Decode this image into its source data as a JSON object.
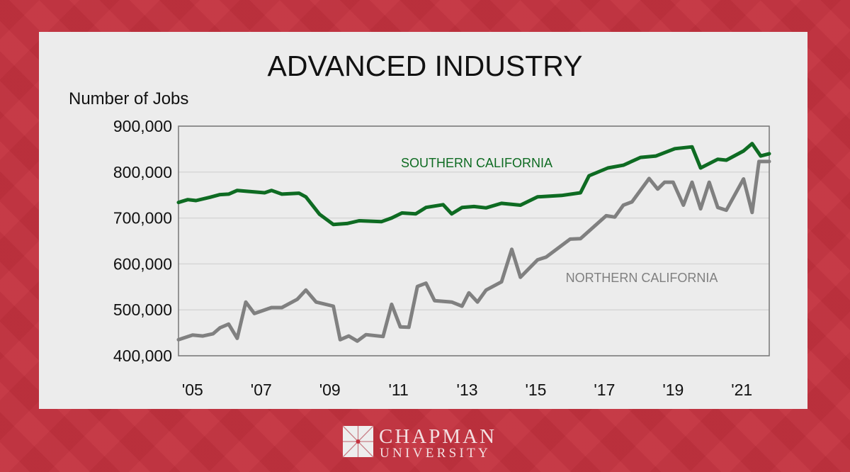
{
  "chart_data": {
    "type": "line",
    "title": "ADVANCED INDUSTRY",
    "ylabel": "Number of Jobs",
    "xlabel": "",
    "ylim": [
      400000,
      900000
    ],
    "xlim": [
      2004.59,
      2021.8
    ],
    "y_ticks": [
      "900,000",
      "800,000",
      "700,000",
      "600,000",
      "500,000",
      "400,000"
    ],
    "y_tick_values": [
      900000,
      800000,
      700000,
      600000,
      500000,
      400000
    ],
    "x_ticks": [
      "'05",
      "'07",
      "'09",
      "'11",
      "'13",
      "'15",
      "'17",
      "'19",
      "'21"
    ],
    "x_tick_values": [
      2005,
      2007,
      2009,
      2011,
      2013,
      2015,
      2017,
      2019,
      2021
    ],
    "grid": "horizontal",
    "series": [
      {
        "name": "SOUTHERN CALIFORNIA",
        "color": "#0e6b22",
        "points": [
          [
            2004.59,
            734000
          ],
          [
            2004.86,
            740000
          ],
          [
            2005.1,
            738000
          ],
          [
            2005.5,
            745000
          ],
          [
            2005.8,
            751000
          ],
          [
            2006.05,
            752000
          ],
          [
            2006.3,
            760000
          ],
          [
            2007.1,
            755000
          ],
          [
            2007.3,
            760000
          ],
          [
            2007.6,
            752000
          ],
          [
            2008.1,
            754000
          ],
          [
            2008.3,
            746000
          ],
          [
            2008.7,
            708000
          ],
          [
            2009.1,
            686000
          ],
          [
            2009.5,
            688000
          ],
          [
            2009.85,
            694000
          ],
          [
            2010.5,
            692000
          ],
          [
            2010.8,
            700000
          ],
          [
            2011.1,
            711000
          ],
          [
            2011.5,
            709000
          ],
          [
            2011.8,
            723000
          ],
          [
            2012.3,
            729000
          ],
          [
            2012.55,
            709000
          ],
          [
            2012.85,
            723000
          ],
          [
            2013.2,
            725000
          ],
          [
            2013.55,
            722000
          ],
          [
            2014.0,
            732000
          ],
          [
            2014.55,
            728000
          ],
          [
            2015.05,
            746000
          ],
          [
            2015.75,
            749000
          ],
          [
            2016.3,
            755000
          ],
          [
            2016.55,
            792000
          ],
          [
            2017.1,
            809000
          ],
          [
            2017.55,
            815000
          ],
          [
            2018.05,
            832000
          ],
          [
            2018.5,
            835000
          ],
          [
            2019.05,
            851000
          ],
          [
            2019.55,
            855000
          ],
          [
            2019.8,
            809000
          ],
          [
            2020.3,
            828000
          ],
          [
            2020.55,
            826000
          ],
          [
            2021.05,
            846000
          ],
          [
            2021.3,
            862000
          ],
          [
            2021.55,
            835000
          ],
          [
            2021.8,
            840000
          ]
        ]
      },
      {
        "name": "NORTHERN CALIFORNIA",
        "color": "#808080",
        "points": [
          [
            2004.59,
            435000
          ],
          [
            2005.0,
            445000
          ],
          [
            2005.3,
            443000
          ],
          [
            2005.6,
            448000
          ],
          [
            2005.8,
            461000
          ],
          [
            2006.05,
            469000
          ],
          [
            2006.3,
            438000
          ],
          [
            2006.55,
            517000
          ],
          [
            2006.8,
            492000
          ],
          [
            2007.3,
            505000
          ],
          [
            2007.6,
            505000
          ],
          [
            2008.05,
            523000
          ],
          [
            2008.3,
            543000
          ],
          [
            2008.6,
            517000
          ],
          [
            2009.1,
            508000
          ],
          [
            2009.3,
            435000
          ],
          [
            2009.55,
            443000
          ],
          [
            2009.8,
            432000
          ],
          [
            2010.05,
            446000
          ],
          [
            2010.55,
            442000
          ],
          [
            2010.8,
            512000
          ],
          [
            2011.05,
            463000
          ],
          [
            2011.3,
            462000
          ],
          [
            2011.55,
            551000
          ],
          [
            2011.8,
            558000
          ],
          [
            2012.05,
            520000
          ],
          [
            2012.55,
            517000
          ],
          [
            2012.85,
            508000
          ],
          [
            2013.05,
            537000
          ],
          [
            2013.3,
            517000
          ],
          [
            2013.55,
            543000
          ],
          [
            2014.0,
            561000
          ],
          [
            2014.3,
            632000
          ],
          [
            2014.55,
            571000
          ],
          [
            2015.05,
            609000
          ],
          [
            2015.3,
            615000
          ],
          [
            2016.0,
            654000
          ],
          [
            2016.3,
            655000
          ],
          [
            2017.05,
            705000
          ],
          [
            2017.3,
            702000
          ],
          [
            2017.55,
            728000
          ],
          [
            2017.8,
            735000
          ],
          [
            2018.3,
            786000
          ],
          [
            2018.55,
            763000
          ],
          [
            2018.75,
            778000
          ],
          [
            2019.0,
            778000
          ],
          [
            2019.3,
            728000
          ],
          [
            2019.55,
            778000
          ],
          [
            2019.8,
            720000
          ],
          [
            2020.05,
            778000
          ],
          [
            2020.3,
            723000
          ],
          [
            2020.55,
            717000
          ],
          [
            2021.05,
            785000
          ],
          [
            2021.3,
            712000
          ],
          [
            2021.5,
            823000
          ],
          [
            2021.8,
            823000
          ]
        ]
      }
    ]
  },
  "footer": {
    "logo_line1": "CHAPMAN",
    "logo_line2": "UNIVERSITY"
  },
  "colors": {
    "background": "#c4323f",
    "card": "#ececec"
  }
}
